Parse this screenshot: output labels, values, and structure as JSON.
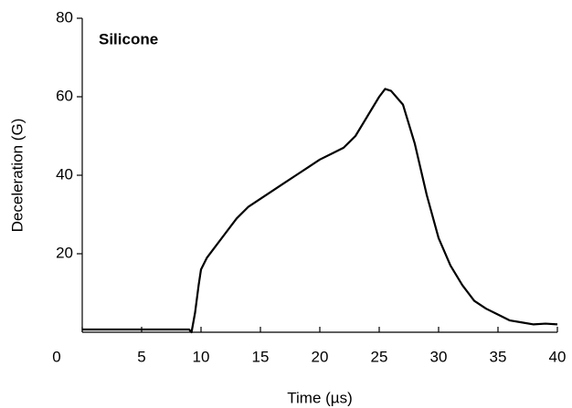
{
  "chart_data": {
    "type": "line",
    "title": "Silicone",
    "x_label": "Time (µs)",
    "y_label": "Deceleration (G)",
    "x": [
      0,
      2,
      4,
      6,
      8,
      9,
      9.2,
      9.5,
      9.8,
      10,
      10.5,
      11,
      12,
      13,
      14,
      15,
      16,
      17,
      18,
      19,
      20,
      21,
      22,
      23,
      24,
      25,
      25.5,
      26,
      27,
      28,
      29,
      30,
      31,
      32,
      33,
      34,
      35,
      36,
      37,
      38,
      39,
      40
    ],
    "series": [
      {
        "name": "Silicone",
        "color": "#000000",
        "values": [
          0.7,
          0.7,
          0.7,
          0.7,
          0.7,
          0.7,
          0,
          5,
          12,
          16,
          19,
          21,
          25,
          29,
          32,
          34,
          36,
          38,
          40,
          42,
          44,
          45.5,
          47,
          50,
          55,
          60,
          62,
          61.5,
          58,
          48,
          35,
          24,
          17,
          12,
          8,
          6,
          4.5,
          3,
          2.5,
          2,
          2.2,
          2
        ]
      }
    ],
    "xlim": [
      0,
      40
    ],
    "xticks": [
      0,
      5,
      10,
      15,
      20,
      25,
      30,
      35,
      40
    ],
    "ylim": [
      0,
      80
    ],
    "yticks": [
      20,
      40,
      60,
      80
    ],
    "grid": false
  }
}
